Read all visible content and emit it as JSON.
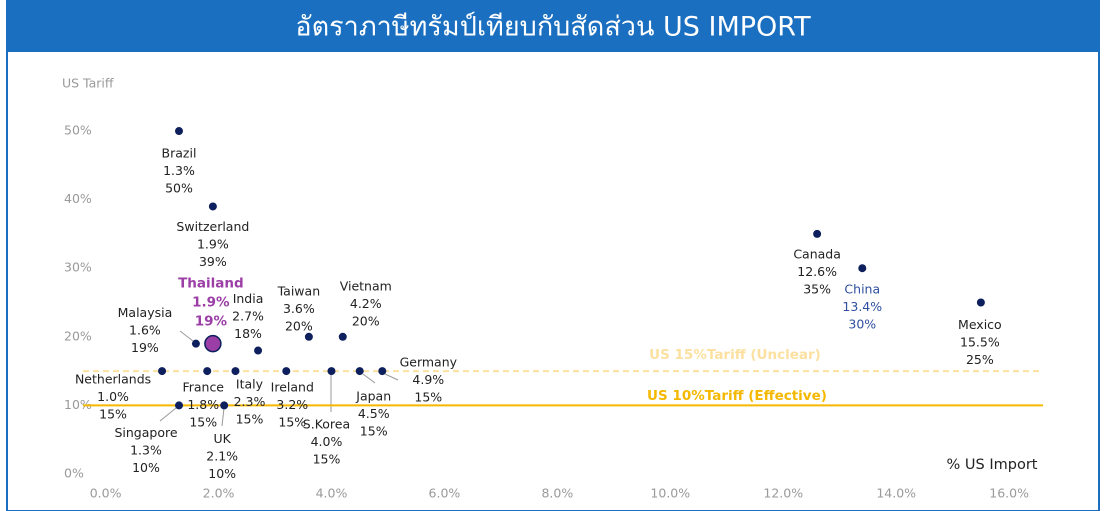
{
  "chart_data": {
    "type": "scatter",
    "title": "อัตราภาษีทรัมป์เทียบกับสัดส่วน US IMPORT",
    "ylabel": "US Tariff",
    "xlabel": "% US Import",
    "labels": [
      "Brazil",
      "Switzerland",
      "Thailand",
      "Malaysia",
      "India",
      "Taiwan",
      "Vietnam",
      "Netherlands",
      "France",
      "Italy",
      "Ireland",
      "S.Korea",
      "Japan",
      "Germany",
      "Singapore",
      "UK",
      "Canada",
      "China",
      "Mexico"
    ],
    "x": [
      1.3,
      1.9,
      1.9,
      1.6,
      2.7,
      3.6,
      4.2,
      1.0,
      1.8,
      2.3,
      3.2,
      4.0,
      4.5,
      4.9,
      1.3,
      2.1,
      12.6,
      13.4,
      15.5
    ],
    "x_labels": [
      "1.3%",
      "1.9%",
      "1.9%",
      "1.6%",
      "2.7%",
      "3.6%",
      "4.2%",
      "1.0%",
      "1.8%",
      "2.3%",
      "3.2%",
      "4.0%",
      "4.5%",
      "4.9%",
      "1.3%",
      "2.1%",
      "12.6%",
      "13.4%",
      "15.5%"
    ],
    "values": [
      50,
      39,
      19,
      19,
      18,
      20,
      20,
      15,
      15,
      15,
      15,
      15,
      15,
      15,
      10,
      10,
      35,
      30,
      25
    ],
    "value_labels": [
      "50%",
      "39%",
      "19%",
      "19%",
      "18%",
      "20%",
      "20%",
      "15%",
      "15%",
      "15%",
      "15%",
      "15%",
      "15%",
      "15%",
      "10%",
      "10%",
      "35%",
      "30%",
      "25%"
    ],
    "color": "#0d1f5c",
    "colors": [
      "#0d1f5c",
      "#0d1f5c",
      "#9b3ea6",
      "#0d1f5c",
      "#0d1f5c",
      "#0d1f5c",
      "#0d1f5c",
      "#0d1f5c",
      "#0d1f5c",
      "#0d1f5c",
      "#0d1f5c",
      "#0d1f5c",
      "#0d1f5c",
      "#0d1f5c",
      "#0d1f5c",
      "#0d1f5c",
      "#0d1f5c",
      "#0d1f5c",
      "#0d1f5c"
    ],
    "label_colors": [
      "#222222",
      "#222222",
      "#9b3ea6",
      "#222222",
      "#222222",
      "#222222",
      "#222222",
      "#222222",
      "#222222",
      "#222222",
      "#222222",
      "#222222",
      "#222222",
      "#222222",
      "#222222",
      "#222222",
      "#222222",
      "#2f4f9f",
      "#222222"
    ],
    "reference_lines": [
      {
        "value": 15,
        "label": "US 15%Tariff (Unclear)",
        "color": "#fbe0a0",
        "style": "dashed"
      },
      {
        "value": 10,
        "label": "US 10%Tariff (Effective)",
        "color": "#f5b800",
        "style": "solid"
      }
    ],
    "xlim": [
      -0.4,
      16.6
    ],
    "ylim": [
      0,
      52
    ],
    "xticks": [
      {
        "value": 0,
        "label": "0.0%"
      },
      {
        "value": 2,
        "label": "2.0%"
      },
      {
        "value": 4,
        "label": "4.0%"
      },
      {
        "value": 6,
        "label": "6.0%"
      },
      {
        "value": 8,
        "label": "8.0%"
      },
      {
        "value": 10,
        "label": "10.0%"
      },
      {
        "value": 12,
        "label": "12.0%"
      },
      {
        "value": 14,
        "label": "14.0%"
      },
      {
        "value": 16,
        "label": "16.0%"
      }
    ],
    "yticks": [
      {
        "value": 0,
        "label": "0%"
      },
      {
        "value": 10,
        "label": "10%"
      },
      {
        "value": 20,
        "label": "20%"
      },
      {
        "value": 30,
        "label": "30%"
      },
      {
        "value": 40,
        "label": "40%"
      },
      {
        "value": 50,
        "label": "50%"
      }
    ]
  }
}
